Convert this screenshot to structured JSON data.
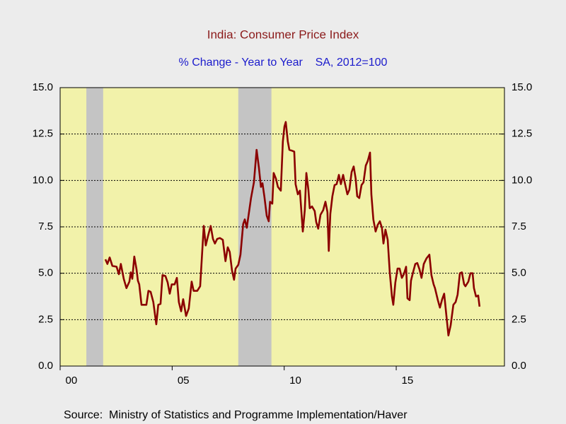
{
  "chart_data": {
    "type": "line",
    "title": "India: Consumer Price Index",
    "subtitle": "% Change - Year to Year    SA, 2012=100",
    "source": "Source:  Ministry of Statistics and Programme Implementation/Haver",
    "xlim": [
      2000,
      2019.83
    ],
    "xticks": [
      {
        "value": 2000,
        "label": "00"
      },
      {
        "value": 2005,
        "label": "05"
      },
      {
        "value": 2010,
        "label": "10"
      },
      {
        "value": 2015,
        "label": "15"
      }
    ],
    "ylim": [
      0,
      15
    ],
    "yticks": [
      {
        "value": 0,
        "label": "0.0"
      },
      2.5,
      {
        "value": 5,
        "label": "5.0"
      },
      7.5,
      {
        "value": 10,
        "label": "10.0"
      },
      12.5,
      {
        "value": 15,
        "label": "15.0"
      }
    ],
    "grid": true,
    "shaded": [
      [
        2001.17,
        2001.92
      ],
      [
        2007.95,
        2009.43
      ]
    ],
    "series": [
      {
        "color": "#8b0000",
        "x": [
          2002.02,
          2002.11,
          2002.21,
          2002.33,
          2002.52,
          2002.62,
          2002.71,
          2002.84,
          2002.96,
          2003.09,
          2003.15,
          2003.22,
          2003.31,
          2003.41,
          2003.47,
          2003.53,
          2003.63,
          2003.85,
          2003.94,
          2004.04,
          2004.16,
          2004.29,
          2004.38,
          2004.48,
          2004.57,
          2004.7,
          2004.8,
          2004.89,
          2004.98,
          2005.11,
          2005.21,
          2005.3,
          2005.4,
          2005.49,
          2005.62,
          2005.74,
          2005.87,
          2005.96,
          2006.12,
          2006.25,
          2006.41,
          2006.5,
          2006.6,
          2006.72,
          2006.82,
          2006.91,
          2007.01,
          2007.13,
          2007.26,
          2007.38,
          2007.48,
          2007.57,
          2007.67,
          2007.76,
          2007.83,
          2007.95,
          2008.05,
          2008.17,
          2008.24,
          2008.33,
          2008.43,
          2008.52,
          2008.65,
          2008.77,
          2008.87,
          2008.96,
          2009.03,
          2009.12,
          2009.22,
          2009.31,
          2009.37,
          2009.47,
          2009.53,
          2009.63,
          2009.72,
          2009.85,
          2009.94,
          2010.01,
          2010.07,
          2010.16,
          2010.23,
          2010.35,
          2010.45,
          2010.51,
          2010.61,
          2010.7,
          2010.83,
          2010.92,
          2010.99,
          2011.08,
          2011.14,
          2011.24,
          2011.36,
          2011.43,
          2011.52,
          2011.62,
          2011.74,
          2011.84,
          2011.93,
          2011.99,
          2012.06,
          2012.15,
          2012.25,
          2012.34,
          2012.44,
          2012.53,
          2012.63,
          2012.72,
          2012.82,
          2012.91,
          2013.01,
          2013.1,
          2013.19,
          2013.26,
          2013.35,
          2013.45,
          2013.54,
          2013.64,
          2013.73,
          2013.83,
          2013.89,
          2013.98,
          2014.08,
          2014.17,
          2014.27,
          2014.36,
          2014.43,
          2014.52,
          2014.62,
          2014.71,
          2014.81,
          2014.87,
          2014.96,
          2015.06,
          2015.15,
          2015.25,
          2015.34,
          2015.44,
          2015.5,
          2015.6,
          2015.66,
          2015.75,
          2015.85,
          2015.94,
          2016.04,
          2016.13,
          2016.23,
          2016.35,
          2016.48,
          2016.57,
          2016.67,
          2016.73,
          2016.86,
          2016.95,
          2017.05,
          2017.14,
          2017.24,
          2017.33,
          2017.43,
          2017.55,
          2017.65,
          2017.74,
          2017.84,
          2017.93,
          2018.03,
          2018.09,
          2018.22,
          2018.31,
          2018.41,
          2018.47,
          2018.56,
          2018.66,
          2018.72
        ],
        "values": [
          5.75,
          5.5,
          5.85,
          5.4,
          5.35,
          4.95,
          5.5,
          4.7,
          4.2,
          4.55,
          5.05,
          4.7,
          5.9,
          5.2,
          4.6,
          4.4,
          3.3,
          3.3,
          4.05,
          4.0,
          3.45,
          2.25,
          3.3,
          3.35,
          4.9,
          4.85,
          4.5,
          3.9,
          4.4,
          4.4,
          4.75,
          3.45,
          2.95,
          3.6,
          2.7,
          3.1,
          4.55,
          4.05,
          4.05,
          4.3,
          7.55,
          6.5,
          7.0,
          7.55,
          6.85,
          6.6,
          6.85,
          6.9,
          6.8,
          5.65,
          6.4,
          6.15,
          5.15,
          4.65,
          5.25,
          5.45,
          6.0,
          7.65,
          7.9,
          7.45,
          8.3,
          9.05,
          9.9,
          11.65,
          10.7,
          9.65,
          9.85,
          9.1,
          8.1,
          7.8,
          8.85,
          8.75,
          10.4,
          10.1,
          9.65,
          9.45,
          12.1,
          12.9,
          13.15,
          12.1,
          11.65,
          11.6,
          11.55,
          9.8,
          9.25,
          9.45,
          7.25,
          8.4,
          10.4,
          9.5,
          8.5,
          8.6,
          8.35,
          7.75,
          7.4,
          8.15,
          8.4,
          8.85,
          8.3,
          6.2,
          8.2,
          9.15,
          9.75,
          9.8,
          10.3,
          9.8,
          10.3,
          9.8,
          9.25,
          9.5,
          10.45,
          10.75,
          10.1,
          9.15,
          9.05,
          9.75,
          9.9,
          10.8,
          11.05,
          11.5,
          9.25,
          7.9,
          7.25,
          7.6,
          7.8,
          7.45,
          6.6,
          7.35,
          6.8,
          5.05,
          3.75,
          3.3,
          4.5,
          5.25,
          5.25,
          4.75,
          4.95,
          5.35,
          3.65,
          3.55,
          4.6,
          5.05,
          5.5,
          5.55,
          5.2,
          4.75,
          5.5,
          5.8,
          6.0,
          4.9,
          4.4,
          4.2,
          3.55,
          3.15,
          3.6,
          3.9,
          2.7,
          1.65,
          2.2,
          3.3,
          3.45,
          3.85,
          5.0,
          5.05,
          4.4,
          4.3,
          4.55,
          5.0,
          5.0,
          4.2,
          3.75,
          3.8,
          3.2
        ]
      }
    ]
  }
}
